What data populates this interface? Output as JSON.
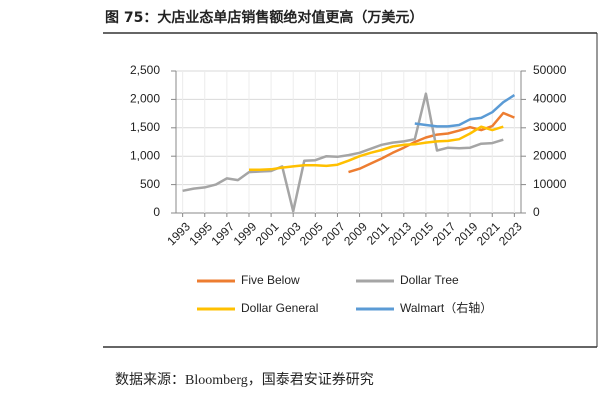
{
  "title": "图 75：大店业态单店销售额绝对值更高（万美元）",
  "source": "数据来源：Bloomberg，国泰君安证券研究",
  "chart_data": {
    "type": "line",
    "x": [
      1993,
      1994,
      1995,
      1996,
      1997,
      1998,
      1999,
      2000,
      2001,
      2002,
      2003,
      2004,
      2005,
      2006,
      2007,
      2008,
      2009,
      2010,
      2011,
      2012,
      2013,
      2014,
      2015,
      2016,
      2017,
      2018,
      2019,
      2020,
      2021,
      2022,
      2023
    ],
    "xlim": [
      1992.4,
      2023.6
    ],
    "xticks": [
      1993,
      1995,
      1997,
      1999,
      2001,
      2003,
      2005,
      2007,
      2009,
      2011,
      2013,
      2015,
      2017,
      2019,
      2021,
      2023
    ],
    "ylim": [
      0,
      2500
    ],
    "yticks": [
      0,
      500,
      {
        "value": 1000,
        "label": "1,000"
      },
      {
        "value": 1500,
        "label": "1,500"
      },
      {
        "value": 2000,
        "label": "2,000"
      },
      {
        "value": 2500,
        "label": "2,500"
      }
    ],
    "y2lim": [
      0,
      50000
    ],
    "y2ticks": [
      0,
      10000,
      20000,
      30000,
      40000,
      50000
    ],
    "grid": true,
    "legend": "bottom",
    "series": [
      {
        "name": "Five Below",
        "color": "#ed7d31",
        "values": [
          null,
          null,
          null,
          null,
          null,
          null,
          null,
          null,
          null,
          null,
          null,
          null,
          null,
          null,
          null,
          720,
          780,
          870,
          960,
          1060,
          1150,
          1250,
          1330,
          1380,
          1400,
          1450,
          1510,
          1460,
          1530,
          1760,
          1680
        ]
      },
      {
        "name": "Dollar Tree",
        "color": "#a5a5a5",
        "values": [
          390,
          430,
          450,
          500,
          610,
          580,
          720,
          730,
          740,
          820,
          30,
          920,
          930,
          1000,
          990,
          1020,
          1060,
          1130,
          1200,
          1240,
          1260,
          1300,
          2100,
          1100,
          1150,
          1140,
          1150,
          1220,
          1230,
          1290,
          null
        ]
      },
      {
        "name": "Dollar General",
        "color": "#ffc000",
        "values": [
          null,
          null,
          null,
          null,
          null,
          null,
          760,
          760,
          770,
          800,
          820,
          840,
          840,
          830,
          850,
          920,
          1000,
          1060,
          1110,
          1170,
          1200,
          1210,
          1240,
          1260,
          1270,
          1300,
          1400,
          1520,
          1460,
          1520,
          null
        ]
      },
      {
        "name": "Walmart（右轴）",
        "color": "#5b9bd5",
        "axis": "y2",
        "values": [
          null,
          null,
          null,
          null,
          null,
          null,
          null,
          null,
          null,
          null,
          null,
          null,
          null,
          null,
          null,
          null,
          null,
          null,
          null,
          null,
          null,
          31500,
          31000,
          30500,
          30500,
          31000,
          33000,
          33500,
          35500,
          39000,
          41500
        ]
      }
    ]
  }
}
